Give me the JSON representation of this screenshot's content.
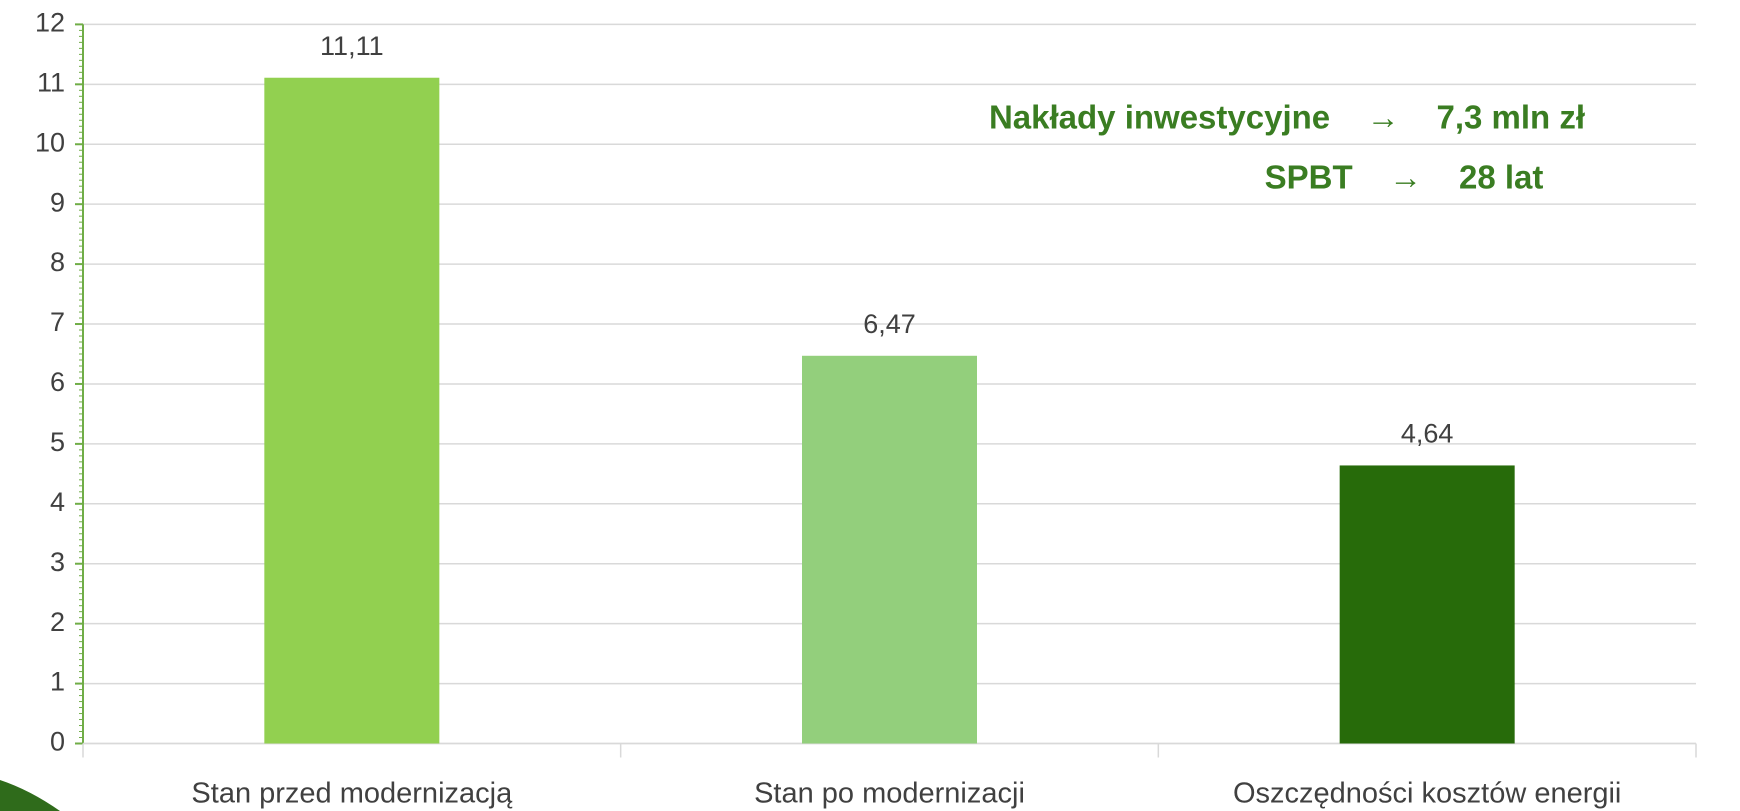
{
  "chart_data": {
    "type": "bar",
    "categories": [
      "Stan przed modernizacją",
      "Stan po modernizacji",
      "Oszczędności kosztów energii"
    ],
    "values": [
      11.11,
      6.47,
      4.64
    ],
    "value_labels": [
      "11,11",
      "6,47",
      "4,64"
    ],
    "colors": [
      "#92d050",
      "#93cf7c",
      "#276b0a"
    ],
    "ylim": [
      0,
      12
    ],
    "yticks": [
      0,
      1,
      2,
      3,
      4,
      5,
      6,
      7,
      8,
      9,
      10,
      11,
      12
    ],
    "grid": true,
    "annotations": [
      "Nakłady inwestycyjne    →    7,3 mln zł",
      "SPBT    →    28 lat"
    ]
  }
}
